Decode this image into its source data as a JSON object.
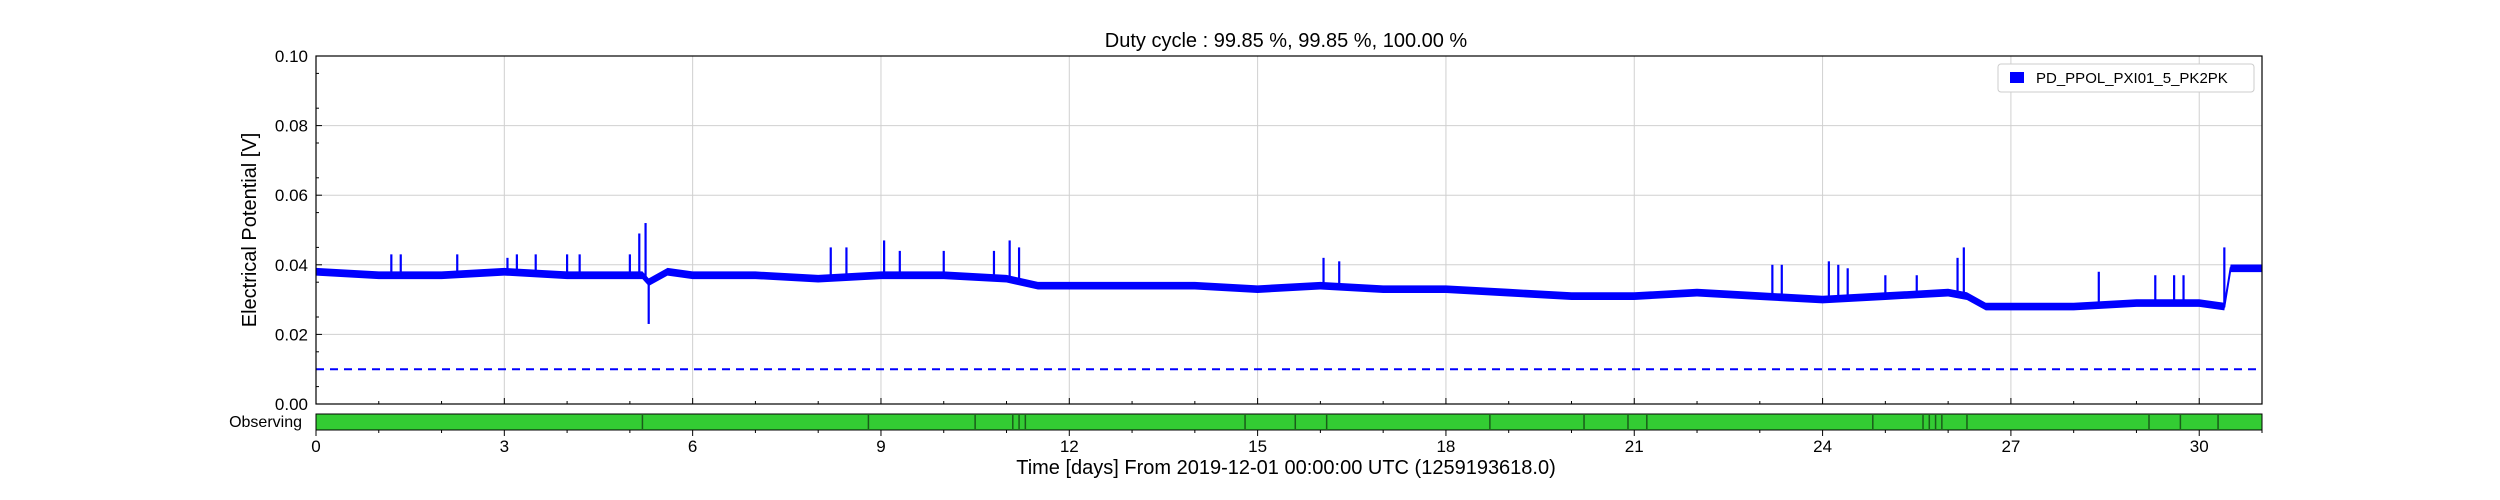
{
  "chart_data": {
    "type": "line",
    "title": "Duty cycle : 99.85 %, 99.85 %, 100.00 %",
    "xlabel": "Time [days] From 2019-12-01 00:00:00 UTC (1259193618.0)",
    "ylabel": "Electrical Potential [V]",
    "xlim": [
      0,
      31
    ],
    "ylim": [
      0,
      0.1
    ],
    "x_ticks": [
      0,
      3,
      6,
      9,
      12,
      15,
      18,
      21,
      24,
      27,
      30
    ],
    "x_tick_labels": [
      "0",
      "3",
      "6",
      "9",
      "12",
      "15",
      "18",
      "21",
      "24",
      "27",
      "30"
    ],
    "y_ticks": [
      0,
      0.02,
      0.04,
      0.06,
      0.08,
      0.1
    ],
    "y_tick_labels": [
      "0.00",
      "0.02",
      "0.04",
      "0.06",
      "0.08",
      "0.10"
    ],
    "grid": true,
    "legend_position": "top-right",
    "series": [
      {
        "name": "PD_PPOL_PXI01_5_PK2PK",
        "color": "#0000ff",
        "x": [
          0,
          1,
          2,
          3,
          4,
          5,
          5.2,
          5.3,
          5.6,
          6,
          7,
          8,
          9,
          10,
          11,
          11.5,
          12,
          13,
          14,
          15,
          16,
          17,
          18,
          19,
          20,
          21,
          22,
          23,
          24,
          25,
          26,
          26.3,
          26.6,
          27,
          28,
          29,
          30,
          30.4,
          30.5,
          31
        ],
        "y": [
          0.038,
          0.037,
          0.037,
          0.038,
          0.037,
          0.037,
          0.037,
          0.035,
          0.038,
          0.037,
          0.037,
          0.036,
          0.037,
          0.037,
          0.036,
          0.034,
          0.034,
          0.034,
          0.034,
          0.033,
          0.034,
          0.033,
          0.033,
          0.032,
          0.031,
          0.031,
          0.032,
          0.031,
          0.03,
          0.031,
          0.032,
          0.031,
          0.028,
          0.028,
          0.028,
          0.029,
          0.029,
          0.028,
          0.039,
          0.039
        ]
      }
    ],
    "spikes": [
      {
        "x": 1.2,
        "y": 0.043
      },
      {
        "x": 1.35,
        "y": 0.043
      },
      {
        "x": 2.25,
        "y": 0.043
      },
      {
        "x": 3.05,
        "y": 0.042
      },
      {
        "x": 3.2,
        "y": 0.043
      },
      {
        "x": 3.5,
        "y": 0.043
      },
      {
        "x": 4.0,
        "y": 0.043
      },
      {
        "x": 4.2,
        "y": 0.043
      },
      {
        "x": 5.0,
        "y": 0.043
      },
      {
        "x": 5.15,
        "y": 0.049
      },
      {
        "x": 5.25,
        "y": 0.052
      },
      {
        "x": 8.2,
        "y": 0.045
      },
      {
        "x": 8.45,
        "y": 0.045
      },
      {
        "x": 9.05,
        "y": 0.047
      },
      {
        "x": 9.3,
        "y": 0.044
      },
      {
        "x": 10.0,
        "y": 0.044
      },
      {
        "x": 10.8,
        "y": 0.044
      },
      {
        "x": 11.05,
        "y": 0.047
      },
      {
        "x": 11.2,
        "y": 0.045
      },
      {
        "x": 16.05,
        "y": 0.042
      },
      {
        "x": 16.3,
        "y": 0.041
      },
      {
        "x": 23.2,
        "y": 0.04
      },
      {
        "x": 23.35,
        "y": 0.04
      },
      {
        "x": 24.1,
        "y": 0.041
      },
      {
        "x": 24.25,
        "y": 0.04
      },
      {
        "x": 24.4,
        "y": 0.039
      },
      {
        "x": 25.0,
        "y": 0.037
      },
      {
        "x": 25.5,
        "y": 0.037
      },
      {
        "x": 26.15,
        "y": 0.042
      },
      {
        "x": 26.25,
        "y": 0.045
      },
      {
        "x": 28.4,
        "y": 0.038
      },
      {
        "x": 29.3,
        "y": 0.037
      },
      {
        "x": 29.6,
        "y": 0.037
      },
      {
        "x": 29.75,
        "y": 0.037
      },
      {
        "x": 30.4,
        "y": 0.045
      }
    ],
    "dips": [
      {
        "x": 5.3,
        "y": 0.023
      }
    ],
    "threshold": {
      "y": 0.01,
      "color": "#0000ff",
      "style": "dashed"
    },
    "segments": {
      "label": "Observing",
      "color": "#33cc33",
      "break_color": "#1a5c1a",
      "xlim": [
        0,
        31
      ],
      "breaks": [
        5.2,
        8.8,
        10.5,
        11.1,
        11.2,
        11.3,
        14.8,
        15.6,
        16.1,
        18.7,
        20.2,
        20.9,
        21.2,
        24.8,
        25.6,
        25.7,
        25.8,
        25.9,
        26.3,
        29.2,
        29.7,
        30.3
      ]
    }
  }
}
